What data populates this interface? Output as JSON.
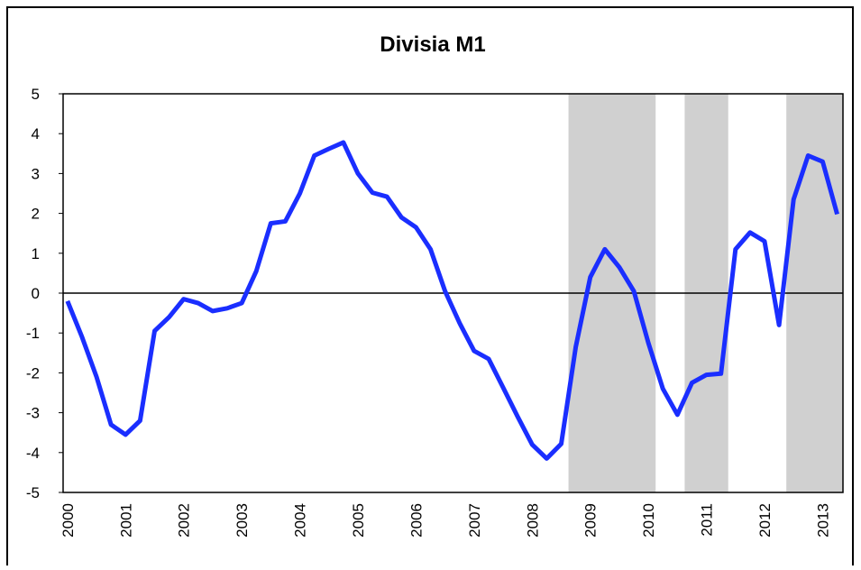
{
  "chart_data": {
    "type": "line",
    "title": "Divisia M1",
    "categories": [
      "2000",
      null,
      null,
      null,
      "2001",
      null,
      null,
      null,
      "2002",
      null,
      null,
      null,
      "2003",
      null,
      null,
      null,
      "2004",
      null,
      null,
      null,
      "2005",
      null,
      null,
      null,
      "2006",
      null,
      null,
      null,
      "2007",
      null,
      null,
      null,
      "2008",
      null,
      null,
      null,
      "2009",
      null,
      null,
      null,
      "2010",
      null,
      null,
      null,
      "2011",
      null,
      null,
      null,
      "2012",
      null,
      null,
      null,
      "2013",
      null
    ],
    "series": [
      {
        "color": "#1a2eff",
        "values": [
          -0.2,
          -1.1,
          -2.1,
          -3.3,
          -3.55,
          -3.2,
          -0.95,
          -0.6,
          -0.15,
          -0.25,
          -0.45,
          -0.38,
          -0.25,
          0.55,
          1.75,
          1.8,
          2.5,
          3.45,
          3.62,
          3.78,
          3.0,
          2.52,
          2.42,
          1.9,
          1.65,
          1.1,
          0.05,
          -0.75,
          -1.45,
          -1.65,
          -2.37,
          -3.1,
          -3.8,
          -4.15,
          -3.78,
          -1.35,
          0.4,
          1.1,
          0.65,
          0.05,
          -1.25,
          -2.4,
          -3.05,
          -2.25,
          -2.05,
          -2.02,
          1.1,
          1.52,
          1.3,
          -0.8,
          2.35,
          3.45,
          3.3,
          1.98
        ]
      }
    ],
    "shaded": [
      [
        34.5,
        40.5
      ],
      [
        42.5,
        45.5
      ],
      [
        49.5,
        53.5
      ]
    ],
    "shade_color": "#d0d0d0",
    "xlim": [
      -0.3,
      53.4
    ],
    "ylim": [
      -5,
      5
    ],
    "yticks": [
      -5,
      -4,
      -3,
      -2,
      -1,
      0,
      1,
      2,
      3,
      4,
      5
    ]
  }
}
